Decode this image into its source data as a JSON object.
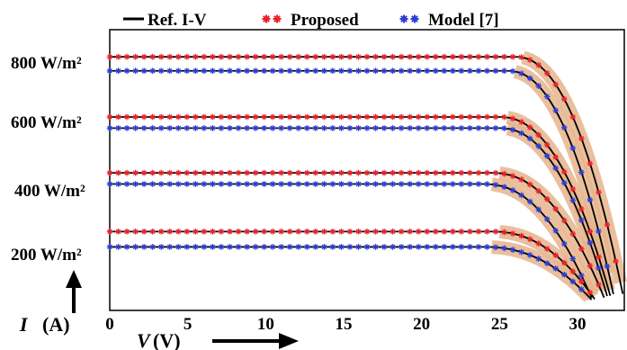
{
  "chart_data": {
    "type": "line",
    "title": "",
    "xlabel": "V",
    "xlabel_unit": "(V)",
    "ylabel": "I",
    "ylabel_unit": "(A)",
    "xlim": [
      0,
      33
    ],
    "xticks": [
      0,
      5,
      10,
      15,
      20,
      25,
      30
    ],
    "yticks": [],
    "grid": false,
    "legend_position": "top",
    "legend": [
      {
        "name": "Ref. I-V",
        "color": "#000000",
        "marker": "line"
      },
      {
        "name": "Proposed",
        "color": "#e8202a",
        "marker": "star"
      },
      {
        "name": "Model [7]",
        "color": "#2a3bd8",
        "marker": "star"
      }
    ],
    "irradiance_labels": [
      "800 W/m²",
      "600 W/m²",
      "400 W/m²",
      "200 W/m²"
    ],
    "highlight_color": "#e6b48c",
    "colors": {
      "ref": "#000000",
      "proposed": "#e8202a",
      "model": "#2a3bd8"
    },
    "curves": [
      {
        "group": "800 W/m²",
        "series": "Proposed",
        "isc": 8.75,
        "voc": 33.0,
        "knee": 26.0
      },
      {
        "group": "800 W/m²",
        "series": "Model [7]",
        "isc": 8.25,
        "voc": 32.4,
        "knee": 25.5
      },
      {
        "group": "600 W/m²",
        "series": "Proposed",
        "isc": 6.6,
        "voc": 32.2,
        "knee": 25.0
      },
      {
        "group": "600 W/m²",
        "series": "Model [7]",
        "isc": 6.2,
        "voc": 32.0,
        "knee": 25.0
      },
      {
        "group": "400 W/m²",
        "series": "Proposed",
        "isc": 4.6,
        "voc": 31.8,
        "knee": 24.5
      },
      {
        "group": "400 W/m²",
        "series": "Model [7]",
        "isc": 4.2,
        "voc": 31.0,
        "knee": 24.0
      },
      {
        "group": "200 W/m²",
        "series": "Proposed",
        "isc": 2.5,
        "voc": 31.2,
        "knee": 24.5
      },
      {
        "group": "200 W/m²",
        "series": "Model [7]",
        "isc": 1.95,
        "voc": 31.0,
        "knee": 24.0
      }
    ]
  }
}
